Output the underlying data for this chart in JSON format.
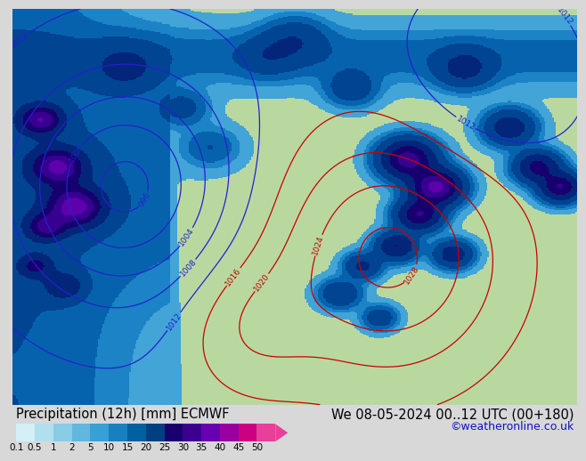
{
  "title_left": "Precipitation (12h) [mm] ECMWF",
  "title_right": "We 08-05-2024 00..12 UTC (00+180)",
  "credit": "©weatheronline.co.uk",
  "colorbar_labels": [
    "0.1",
    "0.5",
    "1",
    "2",
    "5",
    "10",
    "15",
    "20",
    "25",
    "30",
    "35",
    "40",
    "45",
    "50"
  ],
  "colorbar_colors": [
    "#d4eff5",
    "#b0e0ee",
    "#88cce6",
    "#60b8de",
    "#38a0d4",
    "#1880c0",
    "#0060a0",
    "#004080",
    "#1a006e",
    "#3c0090",
    "#6600b0",
    "#9900a0",
    "#cc0080",
    "#e8409a"
  ],
  "bg_color": "#d8d8d8",
  "land_color": "#b8d8a0",
  "sea_color": "#c8e8f0",
  "title_fontsize": 10.5,
  "credit_fontsize": 9,
  "tick_fontsize": 7.5
}
